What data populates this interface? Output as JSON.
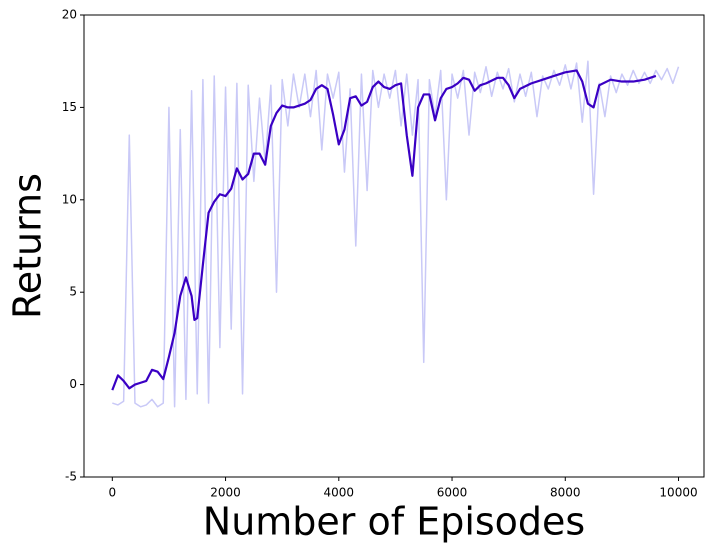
{
  "chart_data": {
    "type": "line",
    "xlabel": "Number of Episodes",
    "ylabel": "Returns",
    "xlim": [
      -500,
      10450
    ],
    "ylim": [
      -5,
      20
    ],
    "xticks": [
      0,
      2000,
      4000,
      6000,
      8000,
      10000
    ],
    "yticks": [
      -5,
      0,
      5,
      10,
      15,
      20
    ],
    "series": [
      {
        "color": "#c9c9f7",
        "x": [
          0,
          100,
          200,
          300,
          400,
          500,
          600,
          700,
          800,
          900,
          1000,
          1100,
          1200,
          1300,
          1400,
          1500,
          1600,
          1700,
          1800,
          1900,
          2000,
          2100,
          2200,
          2300,
          2400,
          2500,
          2600,
          2700,
          2800,
          2900,
          3000,
          3100,
          3200,
          3300,
          3400,
          3500,
          3600,
          3700,
          3800,
          3900,
          4000,
          4100,
          4200,
          4300,
          4400,
          4500,
          4600,
          4700,
          4800,
          4900,
          5000,
          5100,
          5200,
          5300,
          5400,
          5500,
          5600,
          5700,
          5800,
          5900,
          6000,
          6100,
          6200,
          6300,
          6400,
          6500,
          6600,
          6700,
          6800,
          6900,
          7000,
          7100,
          7200,
          7300,
          7400,
          7500,
          7600,
          7700,
          7800,
          7900,
          8000,
          8100,
          8200,
          8300,
          8400,
          8500,
          8600,
          8700,
          8800,
          8900,
          9000,
          9100,
          9200,
          9300,
          9400,
          9500,
          9600,
          9700,
          9800,
          9900,
          10000
        ],
        "values": [
          -1.0,
          -1.1,
          -0.9,
          13.5,
          -1.0,
          -1.2,
          -1.1,
          -0.8,
          -1.2,
          -1.0,
          15.0,
          -1.2,
          13.8,
          -0.8,
          15.9,
          -0.5,
          16.5,
          -1.0,
          16.7,
          2.0,
          16.1,
          3.0,
          16.3,
          -0.5,
          16.2,
          11.0,
          15.5,
          12.0,
          16.2,
          5.0,
          16.5,
          14.0,
          16.8,
          15.0,
          16.8,
          14.5,
          17.0,
          12.7,
          16.8,
          15.5,
          16.9,
          11.5,
          16.0,
          7.5,
          16.8,
          10.5,
          17.0,
          15.0,
          16.8,
          15.5,
          17.0,
          14.0,
          16.8,
          13.5,
          16.5,
          1.2,
          16.5,
          14.5,
          17.0,
          10.0,
          16.8,
          15.5,
          17.0,
          13.5,
          16.9,
          15.8,
          17.2,
          15.6,
          16.9,
          16.0,
          17.1,
          15.3,
          16.8,
          15.6,
          16.9,
          14.5,
          16.7,
          16.0,
          17.0,
          16.2,
          17.3,
          16.0,
          17.4,
          14.2,
          17.5,
          10.3,
          16.3,
          14.5,
          16.7,
          15.8,
          16.8,
          16.2,
          17.0,
          16.3,
          16.9,
          16.3,
          17.0,
          16.5,
          17.1,
          16.3,
          17.2
        ]
      },
      {
        "color": "#3a00c4",
        "x": [
          0,
          100,
          200,
          300,
          400,
          500,
          600,
          700,
          800,
          900,
          1000,
          1100,
          1200,
          1300,
          1400,
          1450,
          1500,
          1600,
          1700,
          1800,
          1900,
          2000,
          2100,
          2200,
          2300,
          2400,
          2500,
          2600,
          2700,
          2800,
          2900,
          3000,
          3100,
          3200,
          3400,
          3500,
          3600,
          3700,
          3800,
          3900,
          4000,
          4100,
          4200,
          4300,
          4400,
          4500,
          4600,
          4700,
          4800,
          4900,
          5000,
          5100,
          5200,
          5300,
          5400,
          5500,
          5600,
          5700,
          5800,
          5900,
          6000,
          6100,
          6200,
          6300,
          6400,
          6500,
          6600,
          6800,
          6900,
          7000,
          7100,
          7200,
          7400,
          7600,
          7800,
          8000,
          8200,
          8300,
          8400,
          8500,
          8600,
          8800,
          9000,
          9200,
          9400,
          9600
        ],
        "values": [
          -0.3,
          0.5,
          0.2,
          -0.2,
          0.0,
          0.1,
          0.2,
          0.8,
          0.7,
          0.3,
          1.5,
          2.8,
          4.8,
          5.8,
          4.8,
          3.5,
          3.6,
          6.5,
          9.3,
          9.9,
          10.3,
          10.2,
          10.6,
          11.7,
          11.1,
          11.4,
          12.5,
          12.5,
          11.9,
          14.0,
          14.7,
          15.1,
          15.0,
          15.0,
          15.2,
          15.4,
          16.0,
          16.2,
          16.0,
          14.6,
          13.0,
          13.8,
          15.5,
          15.6,
          15.1,
          15.3,
          16.1,
          16.4,
          16.1,
          16.0,
          16.2,
          16.3,
          13.5,
          11.3,
          15.0,
          15.7,
          15.7,
          14.3,
          15.5,
          16.0,
          16.1,
          16.3,
          16.6,
          16.5,
          15.9,
          16.2,
          16.3,
          16.6,
          16.6,
          16.2,
          15.5,
          16.0,
          16.3,
          16.5,
          16.7,
          16.9,
          17.0,
          16.4,
          15.2,
          15.0,
          16.2,
          16.5,
          16.4,
          16.4,
          16.5,
          16.7
        ]
      }
    ]
  }
}
